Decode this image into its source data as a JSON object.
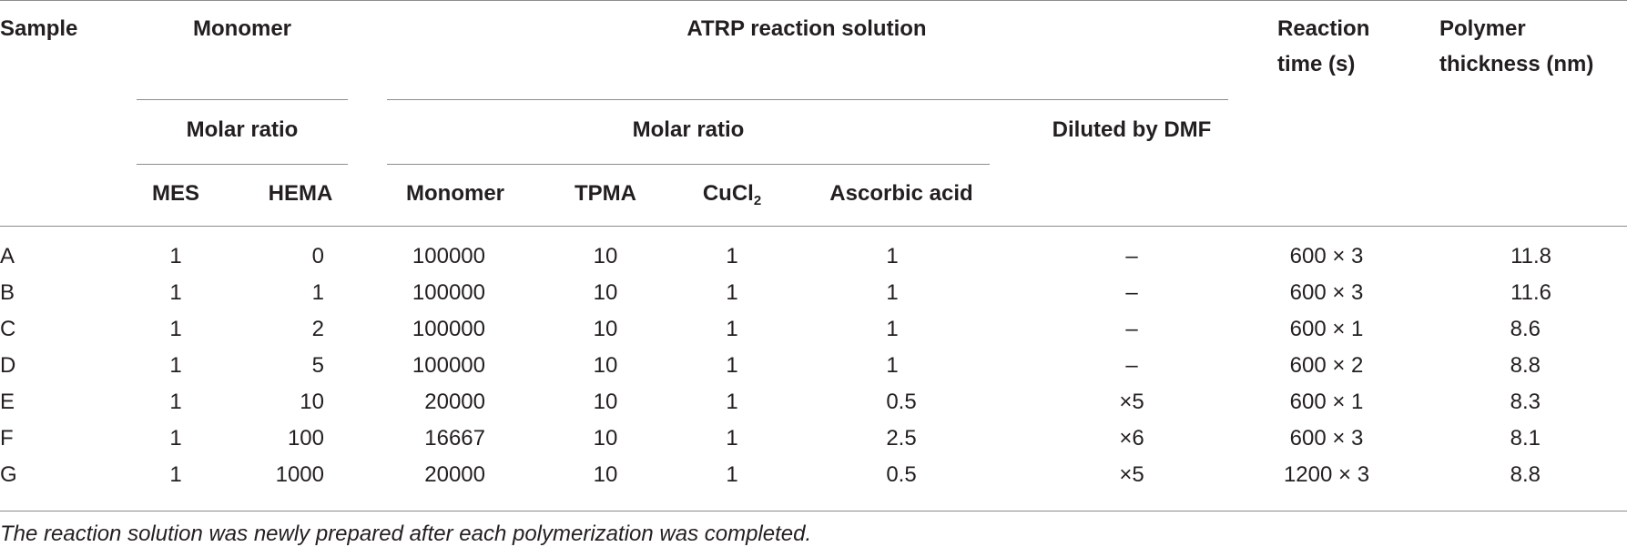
{
  "table": {
    "headers": {
      "sample": "Sample",
      "monomer": "Monomer",
      "atrp_solution": "ATRP reaction solution",
      "reaction_time_line1": "Reaction",
      "reaction_time_line2": "time (s)",
      "thickness_line1": "Polymer",
      "thickness_line2": "thickness (nm)",
      "monomer_molar_ratio": "Molar ratio",
      "atrp_molar_ratio": "Molar ratio",
      "diluted_by_dmf": "Diluted by DMF",
      "mes": "MES",
      "hema": "HEMA",
      "atrp_monomer": "Monomer",
      "tpma": "TPMA",
      "cucl2_base": "CuCl",
      "cucl2_sub": "2",
      "ascorbic_acid": "Ascorbic acid"
    },
    "rows": [
      {
        "sample": "A",
        "mes": "1",
        "hema": "0",
        "monomer": "100000",
        "tpma": "10",
        "cucl2": "1",
        "ascorbic": "1",
        "dmf": "–",
        "time": "600 × 3",
        "thickness": "11.8"
      },
      {
        "sample": "B",
        "mes": "1",
        "hema": "1",
        "monomer": "100000",
        "tpma": "10",
        "cucl2": "1",
        "ascorbic": "1",
        "dmf": "–",
        "time": "600 × 3",
        "thickness": "11.6"
      },
      {
        "sample": "C",
        "mes": "1",
        "hema": "2",
        "monomer": "100000",
        "tpma": "10",
        "cucl2": "1",
        "ascorbic": "1",
        "dmf": "–",
        "time": "600 × 1",
        "thickness": "8.6"
      },
      {
        "sample": "D",
        "mes": "1",
        "hema": "5",
        "monomer": "100000",
        "tpma": "10",
        "cucl2": "1",
        "ascorbic": "1",
        "dmf": "–",
        "time": "600 × 2",
        "thickness": "8.8"
      },
      {
        "sample": "E",
        "mes": "1",
        "hema": "10",
        "monomer": "20000",
        "tpma": "10",
        "cucl2": "1",
        "ascorbic": "0.5",
        "dmf": "×5",
        "time": "600 × 1",
        "thickness": "8.3"
      },
      {
        "sample": "F",
        "mes": "1",
        "hema": "100",
        "monomer": "16667",
        "tpma": "10",
        "cucl2": "1",
        "ascorbic": "2.5",
        "dmf": "×6",
        "time": "600 × 3",
        "thickness": "8.1"
      },
      {
        "sample": "G",
        "mes": "1",
        "hema": "1000",
        "monomer": "20000",
        "tpma": "10",
        "cucl2": "1",
        "ascorbic": "0.5",
        "dmf": "×5",
        "time": "1200 × 3",
        "thickness": "8.8"
      }
    ],
    "footnote": "The reaction solution was newly prepared after each polymerization was completed."
  }
}
